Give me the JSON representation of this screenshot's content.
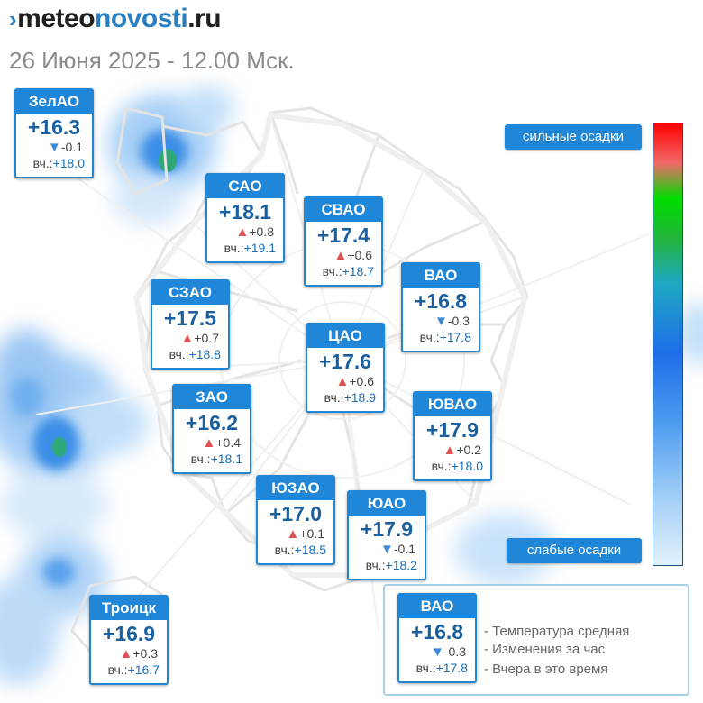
{
  "brand": {
    "prefix": "meteo",
    "mid": "novosti",
    "suffix": ".ru"
  },
  "date_line": "26 Июня 2025 - 12.00 Мск.",
  "yesterday_prefix": "вч.:",
  "districts": [
    {
      "name": "ЗелАО",
      "temp": "+16.3",
      "trend": "down",
      "change": "-0.1",
      "yesterday": "+18.0"
    },
    {
      "name": "САО",
      "temp": "+18.1",
      "trend": "up",
      "change": "+0.8",
      "yesterday": "+19.1"
    },
    {
      "name": "СВАО",
      "temp": "+17.4",
      "trend": "up",
      "change": "+0.6",
      "yesterday": "+18.7"
    },
    {
      "name": "ВАО",
      "temp": "+16.8",
      "trend": "down",
      "change": "-0.3",
      "yesterday": "+17.8"
    },
    {
      "name": "СЗАО",
      "temp": "+17.5",
      "trend": "up",
      "change": "+0.7",
      "yesterday": "+18.8"
    },
    {
      "name": "ЦАО",
      "temp": "+17.6",
      "trend": "up",
      "change": "+0.6",
      "yesterday": "+18.9"
    },
    {
      "name": "ЗАО",
      "temp": "+16.2",
      "trend": "up",
      "change": "+0.4",
      "yesterday": "+18.1"
    },
    {
      "name": "ЮВАО",
      "temp": "+17.9",
      "trend": "up",
      "change": "+0.2",
      "yesterday": "+18.0"
    },
    {
      "name": "ЮЗАО",
      "temp": "+17.0",
      "trend": "up",
      "change": "+0.1",
      "yesterday": "+18.5"
    },
    {
      "name": "ЮАО",
      "temp": "+17.9",
      "trend": "down",
      "change": "-0.1",
      "yesterday": "+18.2"
    },
    {
      "name": "Троицк",
      "temp": "+16.9",
      "trend": "up",
      "change": "+0.3",
      "yesterday": "+16.7"
    }
  ],
  "scale": {
    "top_label": "сильные осадки",
    "bottom_label": "слабые осадки"
  },
  "legend": {
    "sample": {
      "name": "ВАО",
      "temp": "+16.8",
      "trend": "down",
      "change": "-0.3",
      "yesterday": "+17.8"
    },
    "lines": [
      "- Температура средняя",
      "- Изменения за час",
      "- Вчера в это время"
    ]
  },
  "colors": {
    "card_header": "#1f86d8",
    "temp_text": "#1a5f9e",
    "trend_up": "#e05050",
    "trend_down": "#3a8ad8"
  }
}
